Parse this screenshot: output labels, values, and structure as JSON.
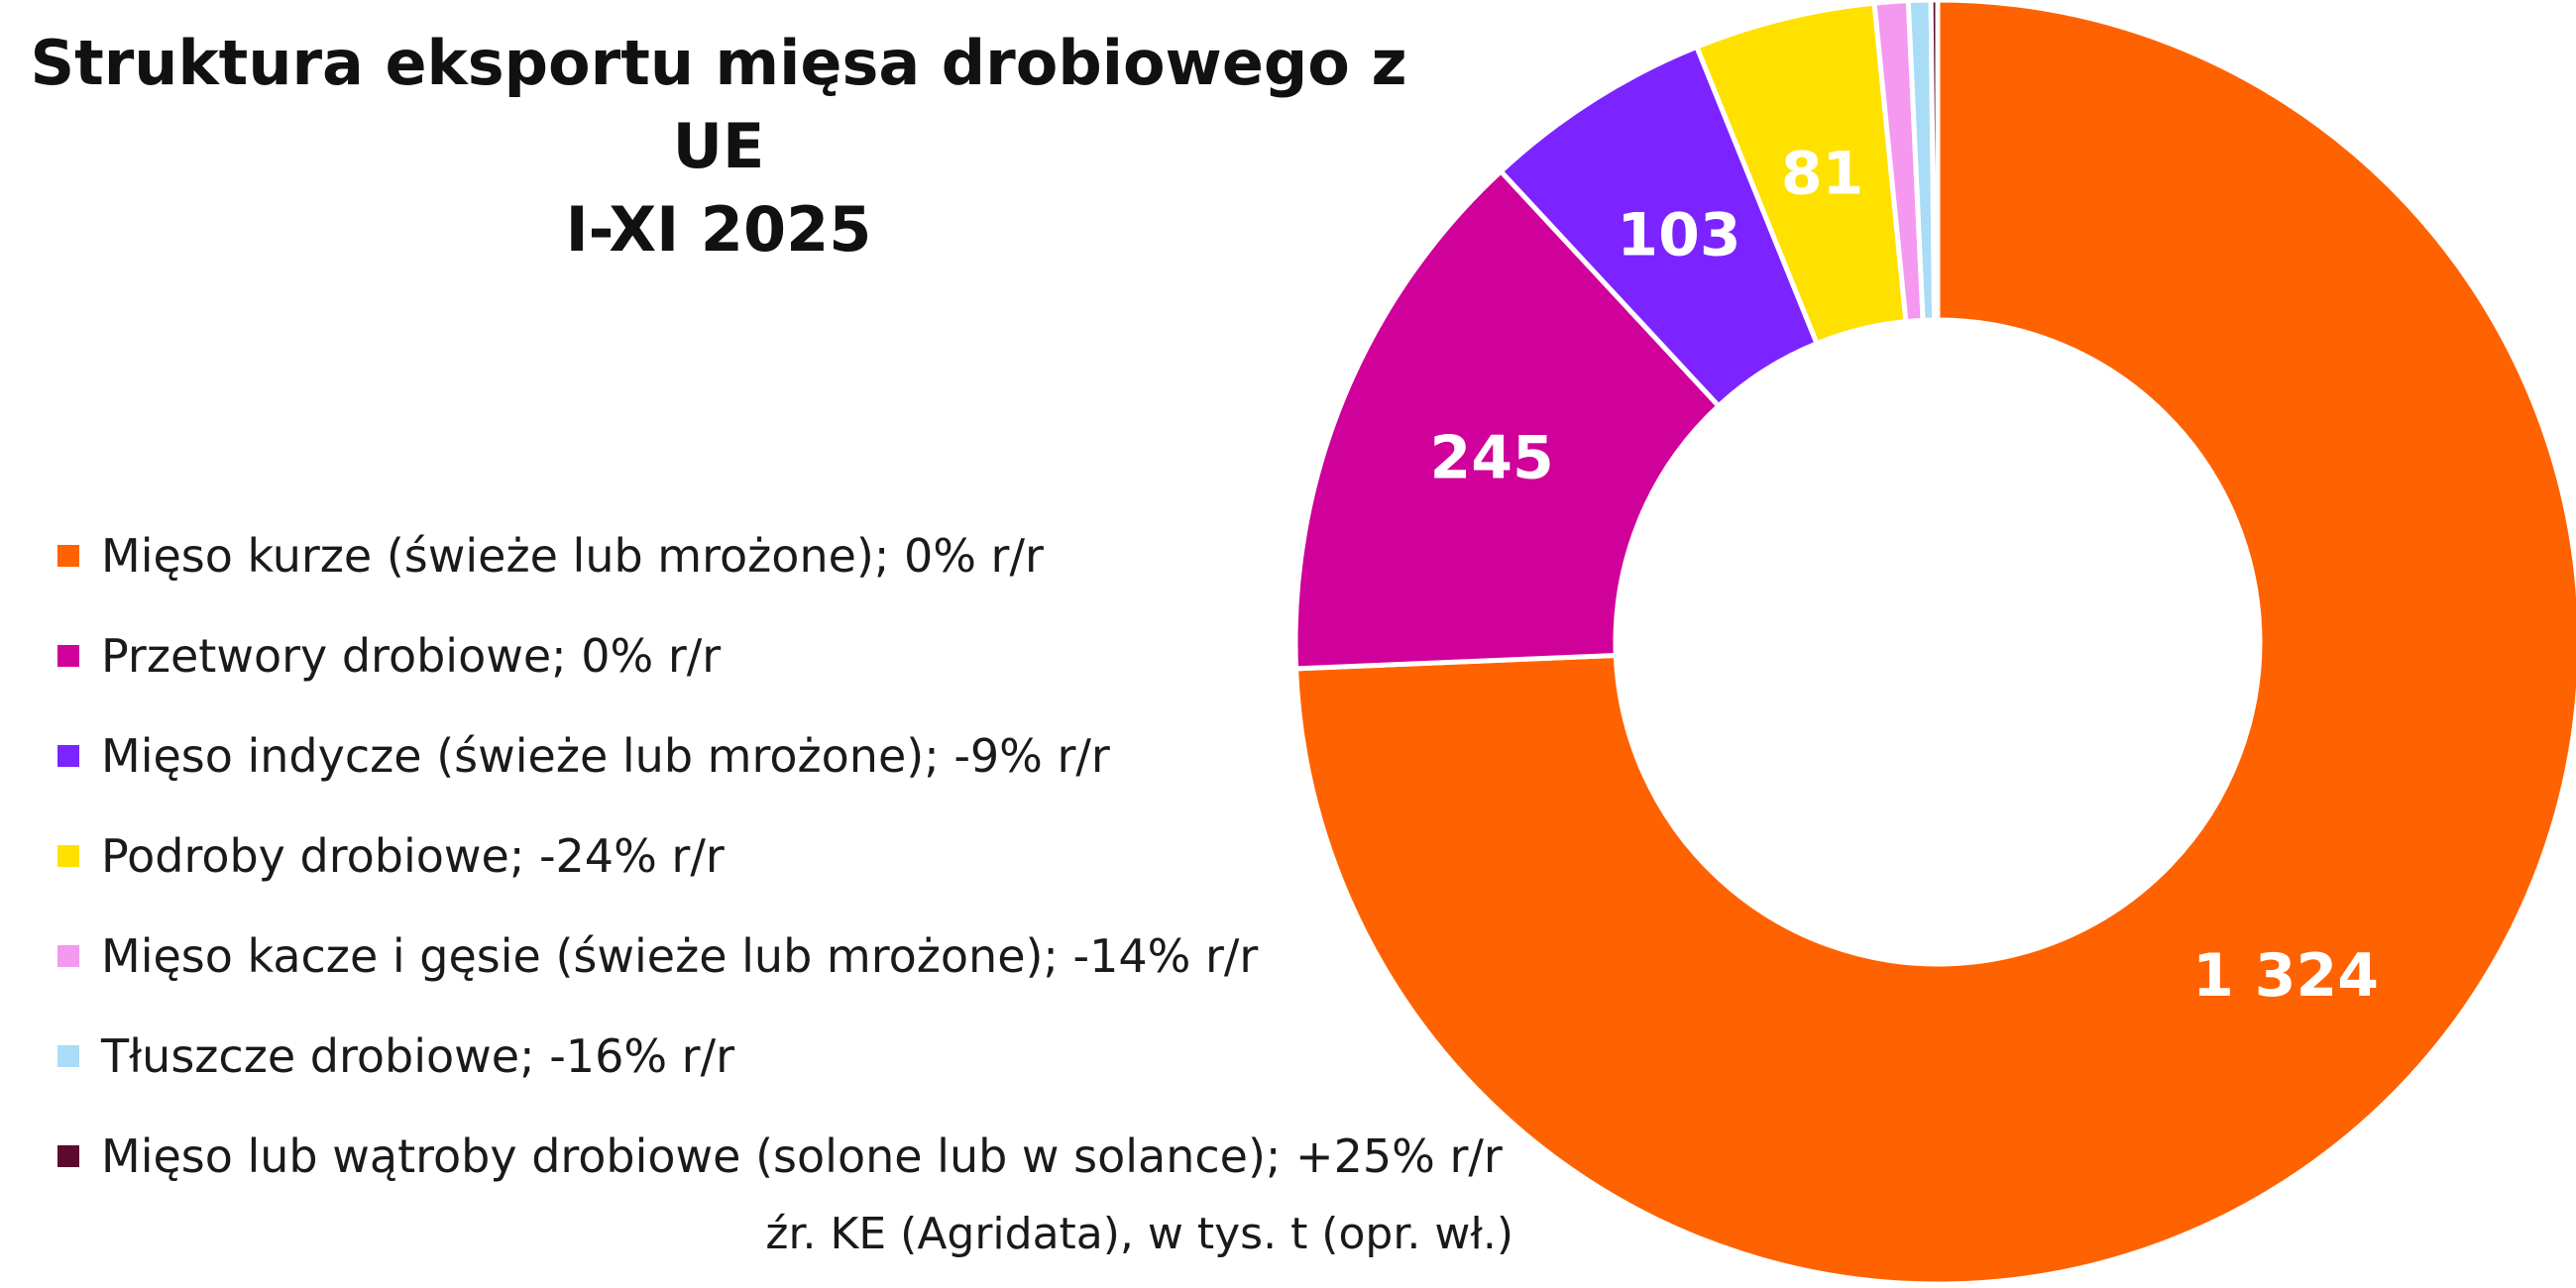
{
  "chart_data": {
    "type": "pie",
    "title": "Struktura eksportu mięsa drobiowego z UE",
    "subtitle": "I-XI 2025",
    "categories": [
      "Mięso kurze (świeże lub mrożone); 0% r/r",
      "Przetwory drobiowe; 0% r/r",
      "Mięso indycze (świeże lub mrożone); -9% r/r",
      "Podroby drobiowe; -24% r/r",
      "Mięso kacze i gęsie (świeże lub mrożone); -14% r/r",
      "Tłuszcze drobiowe; -16% r/r",
      "Mięso lub wątroby drobiowe (solone lub w solance); +25% r/r"
    ],
    "values": [
      1324,
      245,
      103,
      81,
      15,
      10,
      3
    ],
    "data_labels": [
      "1 324",
      "245",
      "103",
      "81",
      "",
      "",
      ""
    ],
    "colors": [
      "#FF6200",
      "#D0009A",
      "#7C24FF",
      "#FFE100",
      "#F598F0",
      "#A8DCF7",
      "#5C0A2E"
    ],
    "legend_position": "left",
    "source": "źr. KE (Agridata), w tys. t (opr. wł.)"
  }
}
